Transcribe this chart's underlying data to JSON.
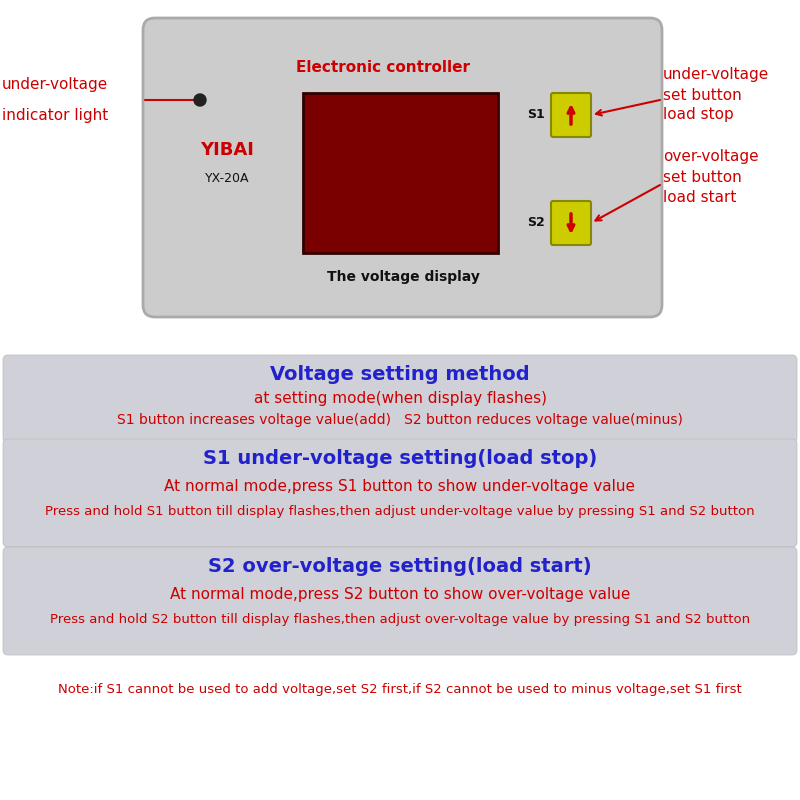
{
  "bg_color": "#ffffff",
  "panel_bg": "#cccccc",
  "panel_border": "#aaaaaa",
  "display_color": "#7a0000",
  "button_color": "#cccc00",
  "button_border": "#888800",
  "text_red": "#cc0000",
  "text_blue": "#2222cc",
  "text_black": "#111111",
  "section_bg": "#d0d0d8",
  "controller_title": "Electronic controller",
  "brand": "YIBAI",
  "model": "YX-20A",
  "display_label": "The voltage display",
  "s1_label": "S1",
  "s2_label": "S2",
  "left_label1": "under-voltage",
  "left_label2": "indicator light",
  "top_right_label1": "under-voltage",
  "top_right_label2": "set button",
  "top_right_label3": "load stop",
  "bot_right_label1": "over-voltage",
  "bot_right_label2": "set button",
  "bot_right_label3": "load start",
  "sec1_title": "Voltage setting method",
  "sec1_line1": "at setting mode(when display flashes)",
  "sec1_line2": "S1 button increases voltage value(add)   S2 button reduces voltage value(minus)",
  "sec2_title": "S1 under-voltage setting(load stop)",
  "sec2_line1": "At normal mode,press S1 button to show under-voltage value",
  "sec2_line2": "Press and hold S1 button till display flashes,then adjust under-voltage value by pressing S1 and S2 button",
  "sec3_title": "S2 over-voltage setting(load start)",
  "sec3_line1": "At normal mode,press S2 button to show over-voltage value",
  "sec3_line2": "Press and hold S2 button till display flashes,then adjust over-voltage value by pressing S1 and S2 button",
  "note": "Note:if S1 cannot be used to add voltage,set S2 first,if S2 cannot be used to minus voltage,set S1 first"
}
